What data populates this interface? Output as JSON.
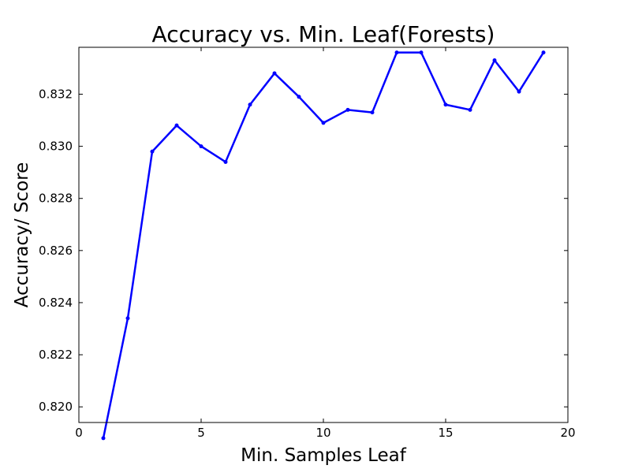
{
  "chart_data": {
    "type": "line",
    "title": "Accuracy vs. Min. Leaf(Forests)",
    "xlabel": "Min. Samples Leaf",
    "ylabel": "Accuracy/ Score",
    "xlim": [
      0,
      20
    ],
    "ylim": [
      0.8194,
      0.8338
    ],
    "xticks": [
      0,
      5,
      10,
      15,
      20
    ],
    "xtick_labels": [
      "0",
      "5",
      "10",
      "15",
      "20"
    ],
    "yticks": [
      0.82,
      0.822,
      0.824,
      0.826,
      0.828,
      0.83,
      0.832
    ],
    "ytick_labels": [
      "0.820",
      "0.822",
      "0.824",
      "0.826",
      "0.828",
      "0.830",
      "0.832"
    ],
    "grid": false,
    "legend": "none",
    "colors": {
      "line": "#0000ff",
      "axes": "#000000",
      "background": "#ffffff"
    },
    "series": [
      {
        "x": [
          1,
          2,
          3,
          4,
          5,
          6,
          7,
          8,
          9,
          10,
          11,
          12,
          13,
          14,
          15,
          16,
          17,
          18,
          19
        ],
        "values": [
          0.8188,
          0.8234,
          0.8298,
          0.8308,
          0.83,
          0.8294,
          0.8316,
          0.8328,
          0.8319,
          0.8309,
          0.8314,
          0.8313,
          0.8336,
          0.8336,
          0.8316,
          0.8314,
          0.8333,
          0.8321,
          0.8336
        ]
      }
    ]
  }
}
